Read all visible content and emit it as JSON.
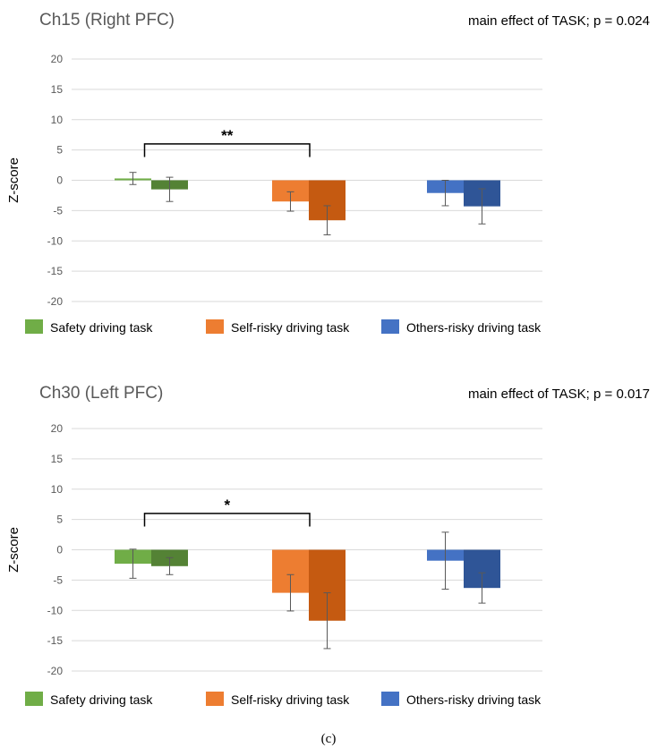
{
  "caption": "(c)",
  "colors": {
    "safety_light": "#70ad47",
    "safety_dark": "#548235",
    "self_light": "#ed7d31",
    "self_dark": "#c55a11",
    "others_light": "#4472c4",
    "others_dark": "#2f5597"
  },
  "chart_data": [
    {
      "type": "bar",
      "title": "Ch15 (Right PFC)",
      "annotation": "main effect of TASK; p = 0.024",
      "ylabel": "Z-score",
      "ylim": [
        -20,
        20
      ],
      "yticks": [
        20,
        15,
        10,
        5,
        0,
        -5,
        -10,
        -15,
        -20
      ],
      "grid": true,
      "legend_position": "bottom",
      "groups": [
        {
          "name": "Safety driving task",
          "bars": [
            {
              "value": 0.3,
              "error": 1.0
            },
            {
              "value": -1.5,
              "error": 2.0
            }
          ]
        },
        {
          "name": "Self-risky driving task",
          "bars": [
            {
              "value": -3.5,
              "error": 1.6
            },
            {
              "value": -6.6,
              "error": 2.4
            }
          ]
        },
        {
          "name": "Others-risky driving task",
          "bars": [
            {
              "value": -2.1,
              "error": 2.1
            },
            {
              "value": -4.3,
              "error": 2.9
            }
          ]
        }
      ],
      "significance": {
        "label": "**",
        "from_group": 0,
        "to_group": 1,
        "y": 6
      }
    },
    {
      "type": "bar",
      "title": "Ch30 (Left PFC)",
      "annotation": "main effect of TASK; p = 0.017",
      "ylabel": "Z-score",
      "ylim": [
        -20,
        20
      ],
      "yticks": [
        20,
        15,
        10,
        5,
        0,
        -5,
        -10,
        -15,
        -20
      ],
      "grid": true,
      "legend_position": "bottom",
      "groups": [
        {
          "name": "Safety driving task",
          "bars": [
            {
              "value": -2.3,
              "error": 2.4
            },
            {
              "value": -2.7,
              "error": 1.4
            }
          ]
        },
        {
          "name": "Self-risky driving task",
          "bars": [
            {
              "value": -7.1,
              "error": 3.0
            },
            {
              "value": -11.7,
              "error": 4.6
            }
          ]
        },
        {
          "name": "Others-risky driving task",
          "bars": [
            {
              "value": -1.8,
              "error": 4.7
            },
            {
              "value": -6.3,
              "error": 2.5
            }
          ]
        }
      ],
      "significance": {
        "label": "*",
        "from_group": 0,
        "to_group": 1,
        "y": 6
      }
    }
  ]
}
